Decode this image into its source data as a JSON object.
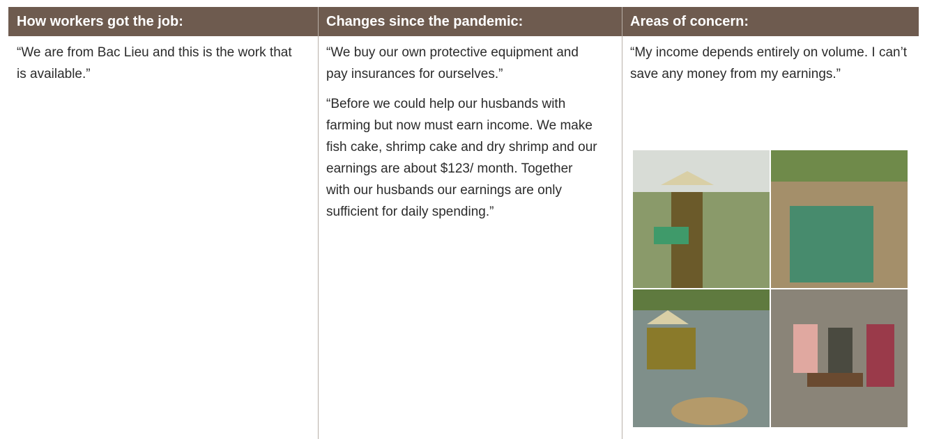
{
  "table": {
    "headers": [
      "How workers got the job:",
      "Changes since the pandemic:",
      "Areas of concern:"
    ],
    "rows": [
      [
        [
          "“We are from Bac Lieu and this is the work that is available.”"
        ],
        [
          "“We buy our own protective equipment and pay insurances for ourselves.”",
          "“Before we could help our husbands with farming but now must earn income. We make fish cake, shrimp cake and dry shrimp and our earnings are about $123/ month. Together with our husbands our earnings are only sufficient for daily spending.”"
        ],
        [
          "“My income depends entirely on volume. I can’t save any money from my earnings.”"
        ]
      ]
    ]
  }
}
